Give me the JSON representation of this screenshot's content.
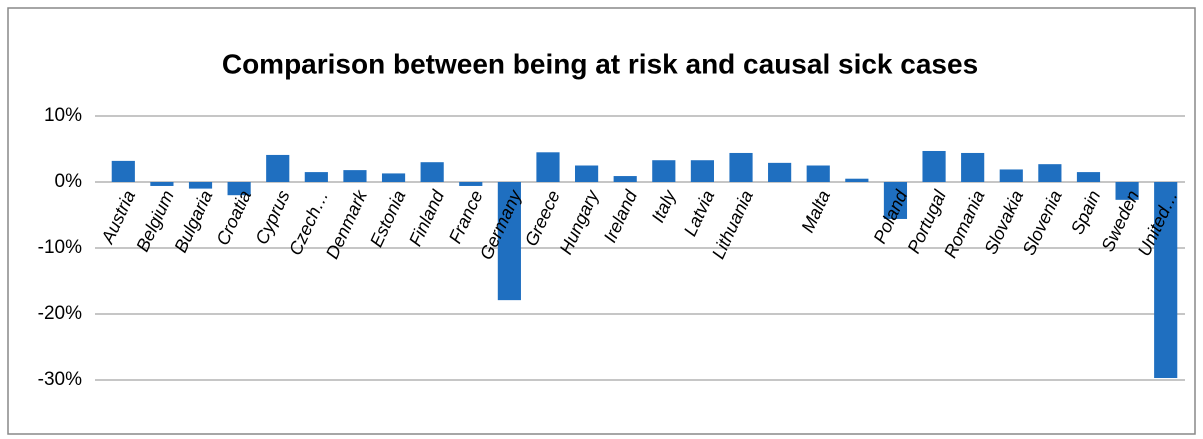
{
  "chart_data": {
    "type": "bar",
    "title": "Comparison between being at risk and causal sick cases",
    "categories": [
      "Austria",
      "Belgium",
      "Bulgaria",
      "Croatia",
      "Cyprus",
      "Czech…",
      "Denmark",
      "Estonia",
      "Finland",
      "France",
      "Germany",
      "Greece",
      "Hungary",
      "Ireland",
      "Italy",
      "Latvia",
      "Lithuania",
      null,
      "Malta",
      null,
      "Poland",
      "Portugal",
      "Romania",
      "Slovakia",
      "Slovenia",
      "Spain",
      "Sweden",
      "United…"
    ],
    "values": [
      3.2,
      -0.6,
      -1.0,
      -2.0,
      4.1,
      1.5,
      1.8,
      1.3,
      3.0,
      -0.6,
      -17.9,
      4.5,
      2.5,
      0.9,
      3.3,
      3.3,
      4.4,
      2.9,
      2.5,
      0.5,
      -5.6,
      4.7,
      4.4,
      1.9,
      2.7,
      1.5,
      -2.7,
      -29.7
    ],
    "color": "#1f6fc0",
    "ylim": [
      -30,
      10
    ],
    "yticks": [
      {
        "value": -30,
        "label": "-30%"
      },
      {
        "value": -20,
        "label": "-20%"
      },
      {
        "value": -10,
        "label": "-10%"
      },
      {
        "value": 0,
        "label": "0%"
      },
      {
        "value": 10,
        "label": "10%"
      }
    ],
    "grid": true
  }
}
